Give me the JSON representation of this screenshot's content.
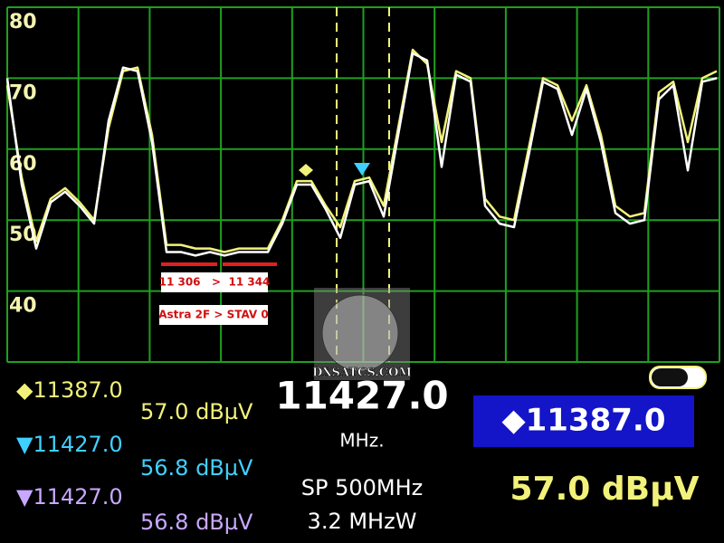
{
  "chart_data": {
    "type": "line",
    "categories": [
      null,
      null,
      null,
      null,
      null,
      null,
      null,
      null,
      null,
      null,
      null,
      null,
      null,
      null,
      null,
      null,
      null,
      null,
      null,
      null,
      null,
      null,
      null,
      null,
      null,
      null,
      null,
      null,
      null,
      null,
      null,
      null,
      null,
      null,
      null,
      null,
      null,
      null,
      null,
      null,
      null,
      null,
      null,
      null,
      null,
      null,
      null,
      null,
      null,
      null
    ],
    "series": [
      {
        "color": "#f2f27a",
        "values": [
          69,
          56,
          47,
          53,
          54.5,
          52.5,
          50,
          63,
          71,
          71.5,
          62,
          46.5,
          46.5,
          46,
          46,
          45.5,
          46,
          46,
          46,
          50,
          55.5,
          55.5,
          52,
          49,
          55.5,
          56,
          52,
          63,
          74,
          72,
          61,
          71,
          70,
          53,
          50.5,
          50,
          60,
          70,
          69,
          64,
          69,
          62,
          52,
          50.5,
          51,
          68,
          69.5,
          61,
          70,
          71
        ]
      },
      {
        "color": "#ffffff",
        "values": [
          70,
          55,
          46,
          52.5,
          54,
          52,
          49.5,
          64,
          71.5,
          71,
          61,
          45.5,
          45.5,
          45,
          45.5,
          45,
          45.5,
          45.5,
          45.5,
          49.5,
          55,
          55,
          51.5,
          47.5,
          55,
          55.5,
          50.5,
          62,
          73.5,
          72.5,
          57.5,
          70.5,
          69.5,
          52,
          49.5,
          49,
          59,
          69.5,
          68.5,
          62,
          68.5,
          61,
          51,
          49.5,
          50,
          67,
          69,
          57,
          69.5,
          70
        ]
      }
    ],
    "ylim": [
      30,
      80
    ],
    "yticks": [
      40,
      50,
      60,
      70,
      80
    ],
    "grid": true,
    "annotations": [
      "11 306   >  11 344",
      "Astra 2F > STAV 0",
      "DXSATCS.COM"
    ]
  },
  "readout": {
    "markers": [
      {
        "freq": "◆11387.0",
        "level": "57.0 dBµV"
      },
      {
        "freq": "▼11427.0",
        "level": "56.8 dBµV"
      },
      {
        "freq": "▼11427.0",
        "level": "56.8 dBµV"
      }
    ],
    "center": {
      "freq": "11427.0",
      "unit": "MHz.",
      "span": "SP 500MHz",
      "rbw": "3.2 MHzW"
    },
    "active": {
      "freq": "◆11387.0",
      "level": "57.0 dBµV"
    }
  }
}
